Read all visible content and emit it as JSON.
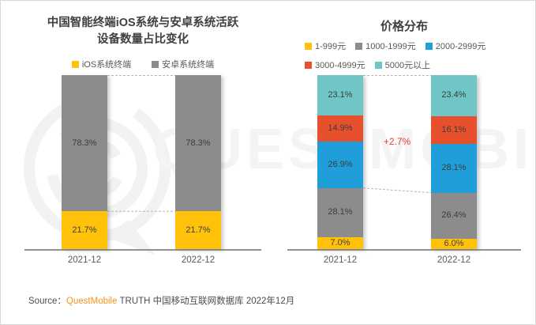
{
  "page": {
    "watermark_text": "QUESTMOBILE",
    "source": {
      "label": "Source：",
      "brand": "QuestMobile",
      "rest": " TRUTH 中国移动互联网数据库 2022年12月"
    }
  },
  "colors": {
    "title_text": "#404040",
    "value_label_text": "#3d3d3d",
    "axis_text": "#595959",
    "axis_line": "#919191",
    "dashed_line": "#b5b5b5",
    "brand_orange": "#f7941e",
    "annotation_red": "#ed3a31"
  },
  "chart_data": [
    {
      "type": "bar",
      "stacked": true,
      "title": "中国智能终端iOS系统与安卓系统活跃设备数量占比变化",
      "title_lines": [
        "中国智能终端iOS系统与安卓系统活跃",
        "设备数量占比变化"
      ],
      "unit": "%",
      "ylim": [
        0,
        100
      ],
      "grid": false,
      "legend_position": "top",
      "categories": [
        "2021-12",
        "2022-12"
      ],
      "series": [
        {
          "name": "iOS系统终端",
          "color": "#ffc10a",
          "values": [
            21.7,
            21.7
          ]
        },
        {
          "name": "安卓系统终端",
          "color": "#8c8c8c",
          "values": [
            78.3,
            78.3
          ]
        }
      ],
      "connectors": [
        {
          "type": "top"
        },
        {
          "type": "stack-boundary",
          "after_series": 0
        }
      ]
    },
    {
      "type": "bar",
      "stacked": true,
      "title": "价格分布",
      "title_lines": [
        "价格分布"
      ],
      "unit": "%",
      "ylim": [
        0,
        100
      ],
      "grid": false,
      "legend_position": "top",
      "categories": [
        "2021-12",
        "2022-12"
      ],
      "series": [
        {
          "name": "1-999元",
          "color": "#ffc10a",
          "values": [
            7.0,
            6.0
          ]
        },
        {
          "name": "1000-1999元",
          "color": "#8c8c8c",
          "values": [
            28.1,
            26.4
          ]
        },
        {
          "name": "2000-2999元",
          "color": "#1f9ed9",
          "values": [
            26.9,
            28.1
          ]
        },
        {
          "name": "3000-4999元",
          "color": "#e6502d",
          "values": [
            14.9,
            16.1
          ]
        },
        {
          "name": "5000元以上",
          "color": "#70c6c6",
          "values": [
            23.1,
            23.4
          ]
        }
      ],
      "annotation": {
        "text": "+2.7%",
        "color": "#ed3a31"
      },
      "connectors": [
        {
          "type": "top"
        },
        {
          "type": "stack-boundary",
          "after_series": 1
        }
      ]
    }
  ]
}
